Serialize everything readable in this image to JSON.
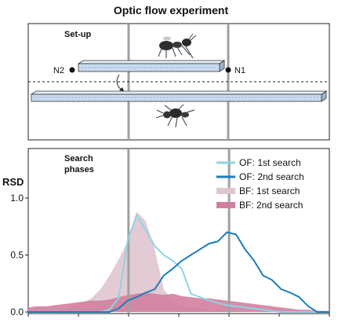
{
  "title": "Optic flow experiment",
  "setup": {
    "label": "Set-up",
    "node_left": "N2",
    "node_right": "N1"
  },
  "chart_data": {
    "type": "area",
    "panel_label": "Search\nphases",
    "ylabel": "RSD",
    "xlabel": "",
    "ylim": [
      0,
      1.0
    ],
    "xlim": [
      0,
      100
    ],
    "yticks": [
      "0.0",
      "0.5",
      "1.0"
    ],
    "yticks_values": [
      0,
      0.5,
      1.0
    ],
    "xtick_count": 7,
    "reference_lines_x": [
      33.3,
      66.7
    ],
    "grid": false,
    "legend_position": "top-right",
    "x": [
      0,
      3,
      6,
      9,
      12,
      15,
      18,
      21,
      24,
      27,
      30,
      33,
      36,
      39,
      42,
      45,
      48,
      51,
      54,
      57,
      60,
      63,
      66,
      69,
      72,
      75,
      78,
      81,
      84,
      87,
      90,
      93,
      96,
      99,
      100
    ],
    "series": [
      {
        "name": "OF: 1st search",
        "style": "line",
        "color": "#8fd3e4",
        "values": [
          0,
          0,
          0,
          0,
          0,
          0,
          0,
          0,
          0,
          0.02,
          0.12,
          0.62,
          0.85,
          0.72,
          0.58,
          0.5,
          0.45,
          0.38,
          0.16,
          0.13,
          0.1,
          0.08,
          0.06,
          0.05,
          0.04,
          0.03,
          0.02,
          0.01,
          0,
          0,
          0,
          0,
          0,
          0,
          0
        ]
      },
      {
        "name": "OF: 2nd search",
        "style": "line",
        "color": "#1a7dbd",
        "values": [
          0,
          0,
          0,
          0,
          0,
          0,
          0,
          0,
          0,
          0,
          0.03,
          0.1,
          0.13,
          0.17,
          0.2,
          0.32,
          0.38,
          0.45,
          0.5,
          0.55,
          0.6,
          0.62,
          0.7,
          0.68,
          0.55,
          0.45,
          0.32,
          0.28,
          0.2,
          0.17,
          0.13,
          0.05,
          0,
          0,
          0
        ]
      },
      {
        "name": "BF: 1st search",
        "style": "area",
        "color": "#dfc5cf",
        "values": [
          0,
          0,
          0,
          0,
          0.02,
          0.05,
          0.08,
          0.12,
          0.2,
          0.32,
          0.46,
          0.62,
          0.88,
          0.8,
          0.55,
          0.2,
          0.1,
          0.06,
          0.04,
          0.03,
          0.02,
          0.02,
          0.01,
          0.01,
          0,
          0,
          0,
          0,
          0,
          0,
          0,
          0,
          0,
          0,
          0
        ]
      },
      {
        "name": "BF: 2nd search",
        "style": "area",
        "color": "#d27f9f",
        "values": [
          0.04,
          0.05,
          0.05,
          0.06,
          0.07,
          0.08,
          0.09,
          0.1,
          0.1,
          0.11,
          0.13,
          0.15,
          0.16,
          0.17,
          0.16,
          0.15,
          0.16,
          0.14,
          0.13,
          0.12,
          0.12,
          0.11,
          0.1,
          0.09,
          0.08,
          0.07,
          0.06,
          0.05,
          0.04,
          0.03,
          0.02,
          0.02,
          0.01,
          0.01,
          0
        ]
      }
    ]
  }
}
